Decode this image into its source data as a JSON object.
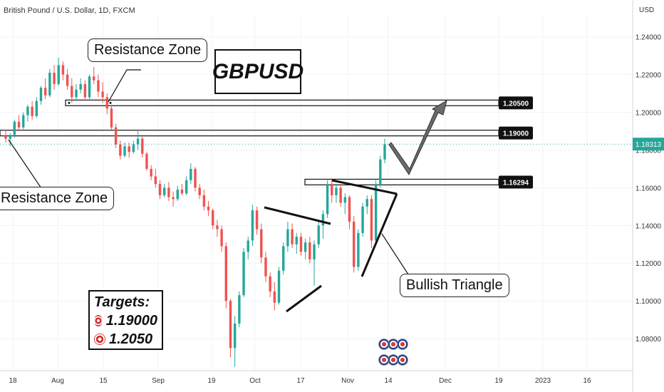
{
  "header": {
    "symbol_line": "British Pound / U.S. Dollar, 1D, FXCM"
  },
  "pair_label": "GBPUSD",
  "callouts": {
    "resistance_top": "Resistance Zone",
    "resistance_left": "Resistance Zone",
    "triangle": "Bullish Triangle"
  },
  "targets": {
    "title": "Targets:",
    "t1": "1.19000",
    "t2": "1.2050"
  },
  "colors": {
    "up": "#26a69a",
    "down": "#ef5350",
    "text": "#131722",
    "grid": "#f0f3fa",
    "axis": "#d1d4dc"
  },
  "chart_data": {
    "type": "candlestick",
    "currency": "USD",
    "ylim": [
      1.063,
      1.252
    ],
    "y_ticks": [
      "1.24000",
      "1.22000",
      "1.20000",
      "1.18000",
      "1.16000",
      "1.14000",
      "1.12000",
      "1.10000",
      "1.08000"
    ],
    "x_ticks": [
      "18",
      "Aug",
      "15",
      "Sep",
      "19",
      "Oct",
      "17",
      "Nov",
      "14",
      "Dec",
      "19",
      "2023",
      "16"
    ],
    "last_price": "1.18313",
    "levels": [
      "1.20500",
      "1.19000",
      "1.16294"
    ],
    "candles": [
      [
        1.1875,
        1.191,
        1.184,
        1.186
      ],
      [
        1.186,
        1.189,
        1.182,
        1.188
      ],
      [
        1.188,
        1.196,
        1.1865,
        1.195
      ],
      [
        1.195,
        1.1985,
        1.19,
        1.192
      ],
      [
        1.192,
        1.2,
        1.191,
        1.1985
      ],
      [
        1.1985,
        1.204,
        1.195,
        1.203
      ],
      [
        1.203,
        1.206,
        1.196,
        1.198
      ],
      [
        1.198,
        1.208,
        1.197,
        1.206
      ],
      [
        1.206,
        1.214,
        1.204,
        1.213
      ],
      [
        1.213,
        1.218,
        1.207,
        1.209
      ],
      [
        1.209,
        1.223,
        1.208,
        1.221
      ],
      [
        1.221,
        1.225,
        1.212,
        1.215
      ],
      [
        1.215,
        1.229,
        1.214,
        1.225
      ],
      [
        1.225,
        1.227,
        1.217,
        1.22
      ],
      [
        1.22,
        1.223,
        1.212,
        1.214
      ],
      [
        1.214,
        1.218,
        1.205,
        1.208
      ],
      [
        1.208,
        1.215,
        1.206,
        1.212
      ],
      [
        1.212,
        1.218,
        1.21,
        1.215
      ],
      [
        1.215,
        1.217,
        1.206,
        1.208
      ],
      [
        1.208,
        1.22,
        1.207,
        1.219
      ],
      [
        1.219,
        1.224,
        1.215,
        1.217
      ],
      [
        1.217,
        1.22,
        1.208,
        1.211
      ],
      [
        1.211,
        1.216,
        1.205,
        1.208
      ],
      [
        1.208,
        1.21,
        1.199,
        1.202
      ],
      [
        1.202,
        1.204,
        1.19,
        1.192
      ],
      [
        1.192,
        1.194,
        1.181,
        1.183
      ],
      [
        1.183,
        1.185,
        1.175,
        1.177
      ],
      [
        1.177,
        1.184,
        1.176,
        1.182
      ],
      [
        1.182,
        1.184,
        1.176,
        1.179
      ],
      [
        1.179,
        1.185,
        1.178,
        1.183
      ],
      [
        1.183,
        1.19,
        1.18,
        1.186
      ],
      [
        1.186,
        1.187,
        1.176,
        1.178
      ],
      [
        1.178,
        1.179,
        1.169,
        1.17
      ],
      [
        1.17,
        1.172,
        1.164,
        1.166
      ],
      [
        1.166,
        1.17,
        1.16,
        1.162
      ],
      [
        1.162,
        1.164,
        1.154,
        1.156
      ],
      [
        1.156,
        1.162,
        1.155,
        1.16
      ],
      [
        1.16,
        1.163,
        1.153,
        1.155
      ],
      [
        1.155,
        1.158,
        1.15,
        1.154
      ],
      [
        1.154,
        1.161,
        1.153,
        1.159
      ],
      [
        1.159,
        1.162,
        1.156,
        1.157
      ],
      [
        1.157,
        1.166,
        1.156,
        1.164
      ],
      [
        1.164,
        1.173,
        1.162,
        1.17
      ],
      [
        1.17,
        1.171,
        1.158,
        1.16
      ],
      [
        1.16,
        1.162,
        1.154,
        1.156
      ],
      [
        1.156,
        1.159,
        1.148,
        1.15
      ],
      [
        1.15,
        1.153,
        1.145,
        1.148
      ],
      [
        1.148,
        1.149,
        1.138,
        1.14
      ],
      [
        1.14,
        1.143,
        1.134,
        1.138
      ],
      [
        1.138,
        1.14,
        1.126,
        1.129
      ],
      [
        1.129,
        1.131,
        1.096,
        1.1
      ],
      [
        1.1,
        1.101,
        1.07,
        1.075
      ],
      [
        1.075,
        1.092,
        1.065,
        1.088
      ],
      [
        1.088,
        1.105,
        1.086,
        1.103
      ],
      [
        1.103,
        1.128,
        1.102,
        1.126
      ],
      [
        1.126,
        1.134,
        1.122,
        1.132
      ],
      [
        1.132,
        1.151,
        1.129,
        1.148
      ],
      [
        1.148,
        1.15,
        1.135,
        1.138
      ],
      [
        1.138,
        1.141,
        1.12,
        1.123
      ],
      [
        1.123,
        1.126,
        1.11,
        1.113
      ],
      [
        1.113,
        1.115,
        1.102,
        1.105
      ],
      [
        1.105,
        1.11,
        1.095,
        1.099
      ],
      [
        1.099,
        1.118,
        1.098,
        1.116
      ],
      [
        1.116,
        1.131,
        1.114,
        1.129
      ],
      [
        1.129,
        1.142,
        1.126,
        1.138
      ],
      [
        1.138,
        1.141,
        1.128,
        1.13
      ],
      [
        1.13,
        1.136,
        1.125,
        1.134
      ],
      [
        1.134,
        1.136,
        1.124,
        1.126
      ],
      [
        1.126,
        1.133,
        1.122,
        1.131
      ],
      [
        1.131,
        1.134,
        1.12,
        1.122
      ],
      [
        1.122,
        1.132,
        1.108,
        1.13
      ],
      [
        1.13,
        1.142,
        1.128,
        1.14
      ],
      [
        1.14,
        1.148,
        1.133,
        1.146
      ],
      [
        1.146,
        1.164,
        1.144,
        1.162
      ],
      [
        1.162,
        1.165,
        1.152,
        1.156
      ],
      [
        1.156,
        1.162,
        1.152,
        1.16
      ],
      [
        1.16,
        1.162,
        1.15,
        1.152
      ],
      [
        1.152,
        1.157,
        1.146,
        1.155
      ],
      [
        1.155,
        1.156,
        1.138,
        1.142
      ],
      [
        1.142,
        1.145,
        1.115,
        1.118
      ],
      [
        1.118,
        1.138,
        1.116,
        1.136
      ],
      [
        1.136,
        1.152,
        1.134,
        1.15
      ],
      [
        1.15,
        1.156,
        1.146,
        1.154
      ],
      [
        1.154,
        1.156,
        1.128,
        1.132
      ],
      [
        1.132,
        1.164,
        1.131,
        1.162
      ],
      [
        1.162,
        1.177,
        1.16,
        1.175
      ],
      [
        1.175,
        1.186,
        1.173,
        1.1831
      ]
    ]
  }
}
